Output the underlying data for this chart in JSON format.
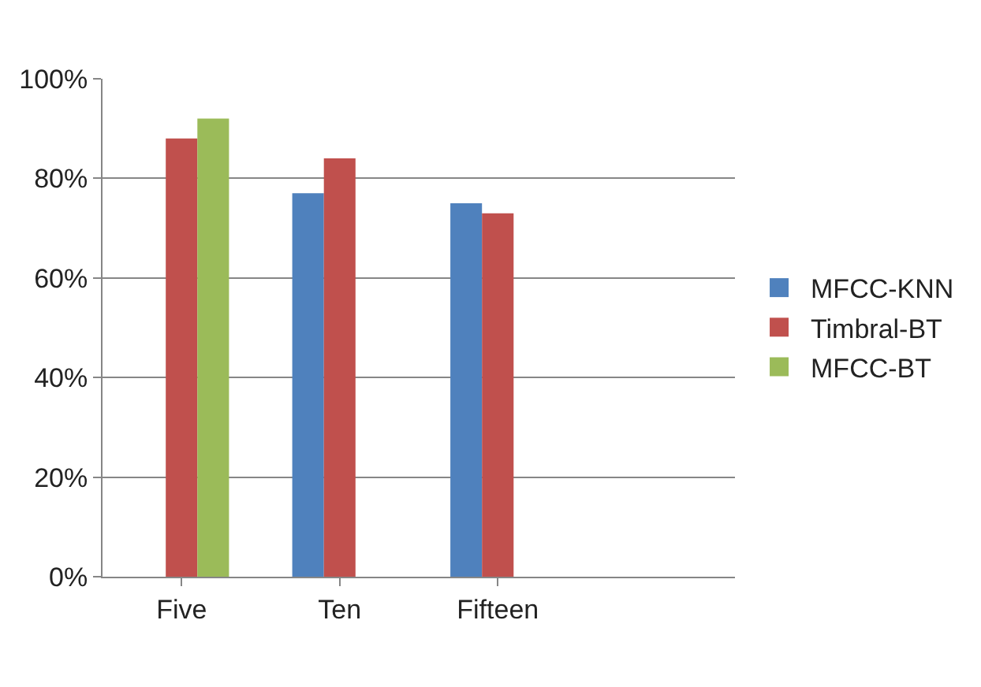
{
  "chart_data": {
    "type": "bar",
    "categories": [
      "Five",
      "Ten",
      "Fifteen",
      null
    ],
    "series": [
      {
        "name": "MFCC-KNN",
        "color": "#4f81bd",
        "values": [
          null,
          77,
          75,
          null
        ]
      },
      {
        "name": "Timbral-BT",
        "color": "#c0504d",
        "values": [
          88,
          84,
          73,
          null
        ]
      },
      {
        "name": "MFCC-BT",
        "color": "#9bbb59",
        "values": [
          92,
          null,
          null,
          null
        ]
      }
    ],
    "ylim": [
      0,
      100
    ],
    "yticks": [
      {
        "value": 0,
        "label": "0%"
      },
      {
        "value": 20,
        "label": "20%"
      },
      {
        "value": 40,
        "label": "40%"
      },
      {
        "value": 60,
        "label": "60%"
      },
      {
        "value": 80,
        "label": "80%"
      },
      {
        "value": 100,
        "label": "100%"
      }
    ],
    "grid": "y",
    "legend": "right"
  }
}
